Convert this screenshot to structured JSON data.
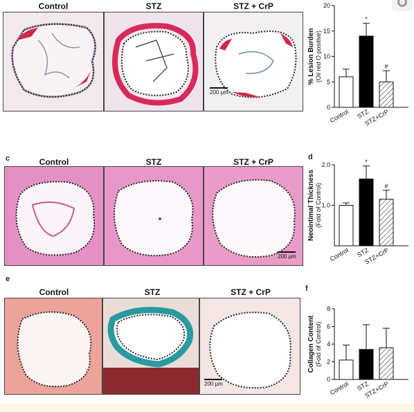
{
  "panels": {
    "c": "c",
    "d": "d",
    "e": "e",
    "f": "f"
  },
  "row1": {
    "titles": [
      "Control",
      "STZ",
      "STZ + CrP"
    ],
    "scale": "200 µm"
  },
  "row2": {
    "titles": [
      "Control",
      "STZ",
      "STZ + CrP"
    ],
    "scale": "200 µm"
  },
  "row3": {
    "titles": [
      "Control",
      "STZ",
      "STZ + CrP"
    ],
    "scale": "200 µm"
  },
  "colors": {
    "control_fill": "#ffffff",
    "stz_fill": "#000000",
    "crp_hatch": "#333333",
    "oil_red_bg": "#f4ecec",
    "he_bg": "#e890c0",
    "trichrome_bg": "#e8a898"
  },
  "chart_data": [
    {
      "type": "bar",
      "categories": [
        "Control",
        "STZ",
        "STZ+CrP"
      ],
      "values": [
        6.0,
        14.0,
        5.0
      ],
      "errors": [
        1.5,
        2.5,
        2.2
      ],
      "annotations": [
        "",
        "*",
        "#"
      ],
      "ylabel": "% Lesion Burden",
      "ylabel2": "(Oil red O positive)",
      "ylim": [
        0,
        20
      ],
      "yticks": [
        0,
        5,
        10,
        15,
        20
      ],
      "ytick_labels": [
        "0",
        "5",
        "10",
        "15",
        "20"
      ]
    },
    {
      "type": "bar",
      "categories": [
        "Control",
        "STZ",
        "STZ+CrP"
      ],
      "values": [
        1.0,
        1.65,
        1.15
      ],
      "errors": [
        0.06,
        0.32,
        0.22
      ],
      "annotations": [
        "",
        "*",
        "#"
      ],
      "ylabel": "Neointimal Thickness",
      "ylabel2": "(Fold of Control)",
      "ylim": [
        0,
        2.0
      ],
      "yticks": [
        1.0,
        2.0
      ],
      "ytick_labels": [
        "1.0",
        "2.0"
      ]
    },
    {
      "type": "bar",
      "categories": [
        "Control",
        "STZ",
        "STZ+CrP"
      ],
      "values": [
        2.2,
        3.4,
        3.6
      ],
      "errors": [
        1.7,
        2.8,
        2.2
      ],
      "annotations": [
        "",
        "",
        ""
      ],
      "ylabel": "Collagen Content",
      "ylabel2": "(Fold of Control)",
      "ylim": [
        0,
        8
      ],
      "yticks": [
        0,
        2,
        4,
        6,
        8
      ],
      "ytick_labels": [
        "0",
        "2",
        "4",
        "6",
        "8"
      ]
    }
  ]
}
